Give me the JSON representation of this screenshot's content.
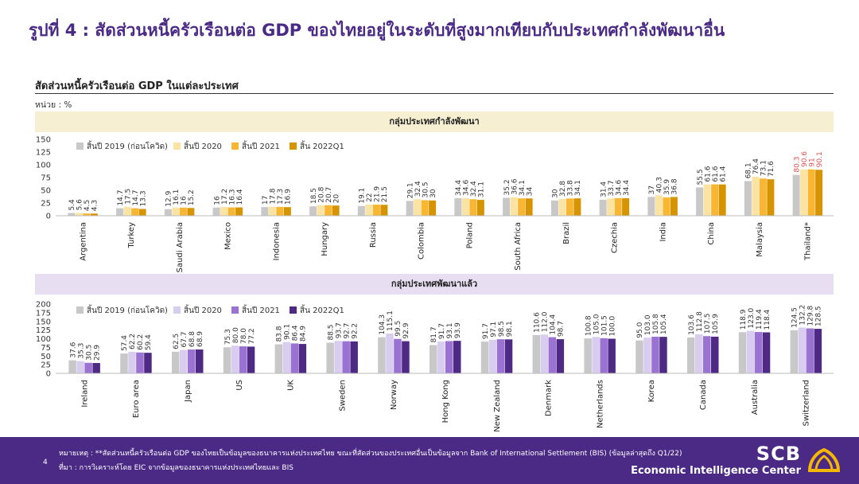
{
  "page": {
    "title": "รูปที่ 4 : สัดส่วนหนี้ครัวเรือนต่อ GDP ของไทยอยู่ในระดับที่สูงมากเทียบกับประเทศกำลังพัฒนาอื่น",
    "subtitle": "สัดส่วนหนี้ครัวเรือนต่อ GDP ในแต่ละประเทศ",
    "unit": "หน่วย : %",
    "page_number": "4",
    "note": "หมายเหตุ : **สัดส่วนหนี้ครัวเรือนต่อ GDP ของไทยเป็นข้อมูลของธนาคารแห่งประเทศไทย ขณะที่สัดส่วนของประเทศอื่นเป็นข้อมูลจาก Bank of International Settlement (BIS) (ข้อมูลล่าสุดถึง Q1/22)",
    "source": "ที่มา : การวิเคราะห์โดย EIC จากข้อมูลของธนาคารแห่งประเทศไทยและ BIS",
    "brand_name": "SCB",
    "brand_sub": "Economic Intelligence Center"
  },
  "colors": {
    "title": "#4b2a85",
    "footer": "#4b2a85",
    "highlight_label": "#d9534f",
    "brand_logo": "#f5b800"
  },
  "chart_data": [
    {
      "type": "bar",
      "group_label": "กลุ่มประเทศกำลังพัฒนา",
      "categories": [
        "Argentina",
        "Turkey",
        "Saudi Arabia",
        "Mexico",
        "Indonesia",
        "Hungary",
        "Russia",
        "Colombia",
        "Poland",
        "South Africa",
        "Brazil",
        "Czechia",
        "India",
        "China",
        "Malaysia",
        "Thailand*"
      ],
      "series": [
        {
          "name": "สิ้นปี 2019 (ก่อนโควิด)",
          "color": "#c8c8c8",
          "values": [
            5.4,
            14.7,
            12.9,
            16,
            17,
            18.5,
            19.1,
            29.1,
            34.4,
            35.2,
            30,
            31.4,
            37,
            55.5,
            68.1,
            80.3
          ]
        },
        {
          "name": "สิ้นปี 2020",
          "color": "#fbe3a3",
          "values": [
            5.6,
            17.5,
            16.1,
            17.2,
            17.8,
            20.8,
            22,
            32.4,
            34.6,
            36.6,
            32.8,
            33.7,
            40.3,
            61.6,
            76.4,
            90.6
          ]
        },
        {
          "name": "สิ้นปี 2021",
          "color": "#f8b633",
          "values": [
            4.5,
            14.7,
            16,
            16.3,
            17.3,
            20.7,
            21.9,
            30.5,
            32.4,
            34.1,
            33.8,
            34.6,
            35.9,
            61.6,
            73.1,
            91
          ]
        },
        {
          "name": "สิ้น 2022Q1",
          "color": "#d69500",
          "values": [
            4.3,
            13.3,
            15.2,
            16.4,
            16.9,
            20,
            21.5,
            30,
            31.1,
            34,
            34.1,
            34.4,
            36.8,
            61.4,
            71.6,
            90.1
          ]
        }
      ],
      "value_labels": [
        [
          "5.4",
          "5.6",
          "4.5",
          "4.3"
        ],
        [
          "14.7",
          "17.5",
          "14.7",
          "13.3"
        ],
        [
          "12.9",
          "16.1",
          "16",
          "15.2"
        ],
        [
          "16",
          "17.2",
          "16.3",
          "16.4"
        ],
        [
          "17",
          "17.8",
          "17.3",
          "16.9"
        ],
        [
          "18.5",
          "20.8",
          "20.7",
          "20"
        ],
        [
          "19.1",
          "22",
          "21.9",
          "21.5"
        ],
        [
          "29.1",
          "32.4",
          "30.5",
          "30"
        ],
        [
          "34.4",
          "34.6",
          "32.4",
          "31.1"
        ],
        [
          "35.2",
          "36.6",
          "34.1",
          "34"
        ],
        [
          "30",
          "32.8",
          "33.8",
          "34.1"
        ],
        [
          "31.4",
          "33.7",
          "34.6",
          "34.4"
        ],
        [
          "37",
          "40.3",
          "35.9",
          "36.8"
        ],
        [
          "55.5",
          "61.6",
          "61.6",
          "61.4"
        ],
        [
          "68.1",
          "76.4",
          "73.1",
          "71.6"
        ],
        [
          "80.3",
          "90.6",
          "91",
          "90.1"
        ]
      ],
      "highlight_category": "Thailand*",
      "ylim": [
        0,
        150
      ],
      "yticks": [
        "150",
        "125",
        "100",
        "75",
        "50",
        "25",
        "0"
      ],
      "legend_position": "top-left"
    },
    {
      "type": "bar",
      "group_label": "กลุ่มประเทศพัฒนาแล้ว",
      "categories": [
        "Ireland",
        "Euro area",
        "Japan",
        "US",
        "UK",
        "Sweden",
        "Norway",
        "Hong Kong",
        "New Zealand",
        "Denmark",
        "Netherlands",
        "Korea",
        "Canada",
        "Australia",
        "Switzerland"
      ],
      "series": [
        {
          "name": "สิ้นปี 2019 (ก่อนโควิด)",
          "color": "#c8c8c8",
          "values": [
            37.6,
            57.4,
            62.5,
            75.3,
            83.8,
            88.5,
            104.3,
            81.7,
            91.7,
            110.6,
            100.8,
            95.0,
            103.6,
            118.9,
            124.5
          ]
        },
        {
          "name": "สิ้นปี 2020",
          "color": "#d9cdef",
          "values": [
            35.3,
            62.2,
            67.7,
            80.0,
            90.1,
            93.7,
            115.1,
            91.7,
            97.1,
            112.0,
            105.0,
            103.0,
            112.8,
            123.0,
            132.2
          ]
        },
        {
          "name": "สิ้นปี 2021",
          "color": "#9a72d1",
          "values": [
            30.5,
            60.2,
            68.8,
            78.0,
            86.4,
            92.7,
            99.5,
            93.1,
            98.5,
            104.4,
            101.5,
            105.8,
            107.5,
            119.4,
            129.8
          ]
        },
        {
          "name": "สิ้น 2022Q1",
          "color": "#4e2a84",
          "values": [
            29.9,
            59.4,
            68.9,
            77.2,
            84.9,
            92.2,
            92.9,
            93.9,
            98.1,
            98.7,
            100.0,
            105.4,
            105.9,
            118.4,
            128.5
          ]
        }
      ],
      "value_labels": [
        [
          "37.6",
          "35.3",
          "30.5",
          "29.9"
        ],
        [
          "57.4",
          "62.2",
          "60.2",
          "59.4"
        ],
        [
          "62.5",
          "67.7",
          "68.8",
          "68.9"
        ],
        [
          "75.3",
          "80.0",
          "78.0",
          "77.2"
        ],
        [
          "83.8",
          "90.1",
          "86.4",
          "84.9"
        ],
        [
          "88.5",
          "93.7",
          "92.7",
          "92.2"
        ],
        [
          "104.3",
          "115.1",
          "99.5",
          "92.9"
        ],
        [
          "81.7",
          "91.7",
          "93.1",
          "93.9"
        ],
        [
          "91.7",
          "97.1",
          "98.5",
          "98.1"
        ],
        [
          "110.6",
          "112.0",
          "104.4",
          "98.7"
        ],
        [
          "100.8",
          "105.0",
          "101.5",
          "100.0"
        ],
        [
          "95.0",
          "103.0",
          "105.8",
          "105.4"
        ],
        [
          "103.6",
          "112.8",
          "107.5",
          "105.9"
        ],
        [
          "118.9",
          "123.0",
          "119.4",
          "118.4"
        ],
        [
          "124.5",
          "132.2",
          "129.8",
          "128.5"
        ]
      ],
      "ylim": [
        0,
        200
      ],
      "yticks": [
        "200",
        "175",
        "150",
        "125",
        "100",
        "75",
        "50",
        "25",
        "0"
      ],
      "legend_position": "top-left"
    }
  ]
}
